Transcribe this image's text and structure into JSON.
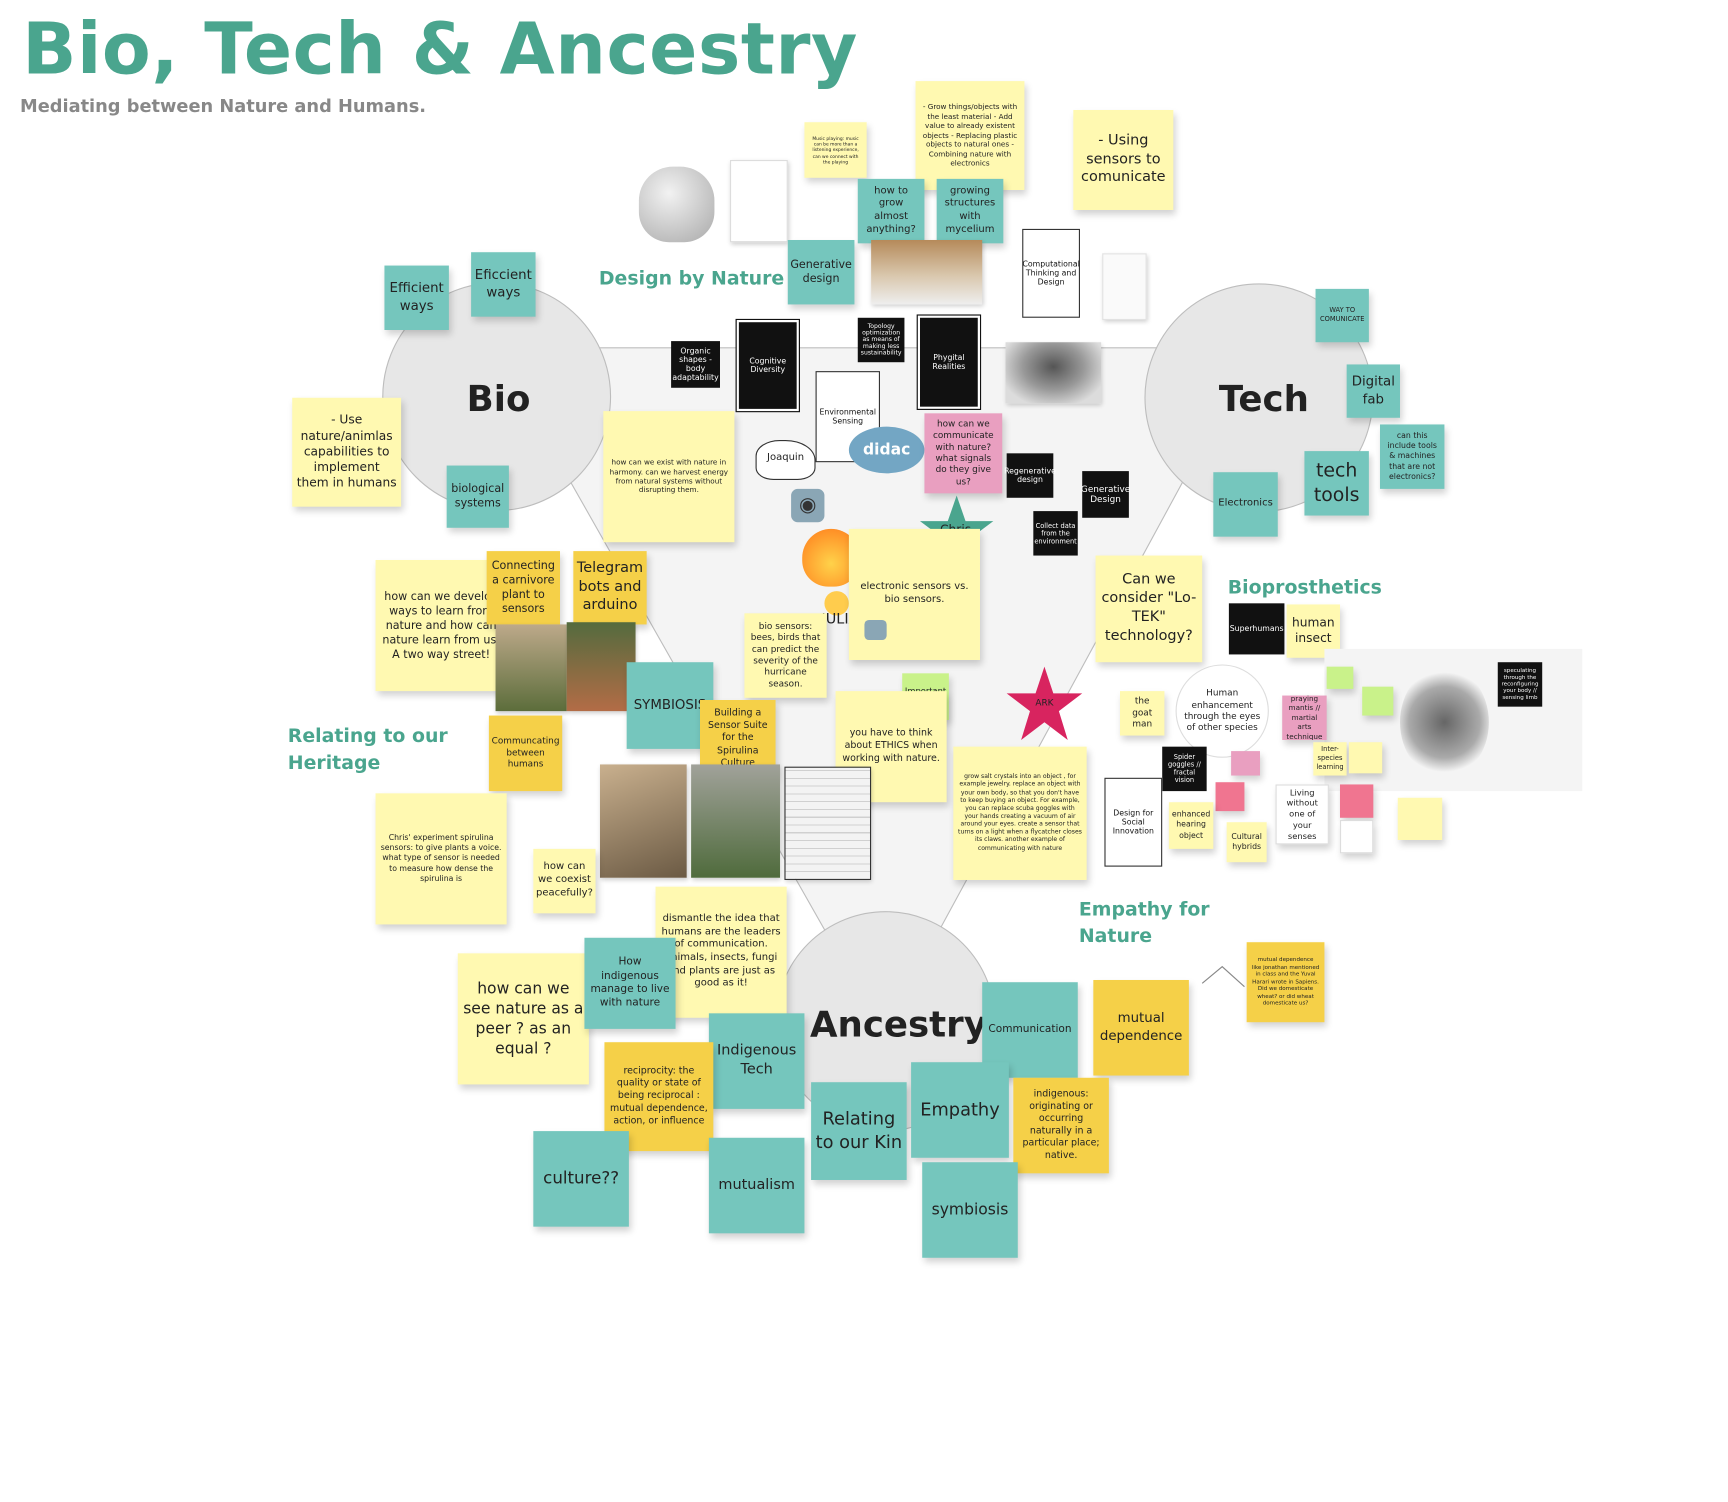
{
  "title": "Bio, Tech & Ancestry",
  "subtitle": "Mediating between Nature and Humans.",
  "headings": {
    "design_by_nature": "Design by Nature",
    "relating_heritage": "Relating to our Heritage",
    "bioprosthetics": "Bioprosthetics",
    "empathy_nature": "Empathy for Nature"
  },
  "circles": {
    "bio": "Bio",
    "tech": "Tech",
    "ancestry": "Ancestry"
  },
  "avatars": {
    "joaquin": "Joaquin",
    "didac": "didac",
    "chris": "Chris",
    "julia": "JULIA",
    "ark": "ARK"
  },
  "notes": {
    "efficient1": "Efficient ways",
    "eficient2": "Eficcient ways",
    "use_nature": "- Use nature/animlas capabilities to implement them in humans",
    "bio_systems": "biological systems",
    "design_notes": "- Grow things/objects with the least material - Add value to already existent objects - Replacing plastic objects to natural ones - Combining nature with electronics",
    "using_sensors": "- Using sensors to comunicate",
    "playing_music": "Music playing: music can be more than a listening experience, can we connect with the playing",
    "how_grow": "how to grow almost anything?",
    "growing_structures": "growing structures with mycelium",
    "generative_design": "Generative design",
    "organic_shapes": "Organic shapes - body adaptability",
    "cognitive_diversity": "Cognitive Diversity",
    "topology": "Topology optimization as means of making less sustainability",
    "phygital": "Phygital Realities",
    "env_sensing": "Environmental Sensing",
    "comp_thinking": "Computational Thinking and Design",
    "way_communicate": "WAY TO COMUNICATE",
    "digital_fab": "Digital fab",
    "tools_machines": "can this include tools & machines that are not electronics?",
    "tech_tools": "tech tools",
    "electronics": "Electronics",
    "exist_harmony": "how can we exist with nature in harmony. can we harvest energy from natural systems without disrupting them.",
    "communicate_nature": "how can we communicate with nature? what signals do they give us?",
    "regenerative": "Regenerative design",
    "generative_design2": "Generative Design",
    "collect_data": "Collect data from the environment",
    "develop_ways": "how can we develop ways to learn from nature and how can nature learn from us. A two way street!",
    "connecting_plant": "Connecting a carnivore plant to sensors",
    "telegram": "Telegram bots and arduino",
    "electronic_sensors": "electronic sensors vs. bio sensors.",
    "lotek": "Can we consider \"Lo-TEK\" technology?",
    "superhumans": "Superhumans",
    "human_insect": "human insect",
    "bio_sensors": "bio sensors: bees, birds that can predict the severity of the hurricane season.",
    "symbiosis_top": "SYMBIOSIS",
    "important": "Important question!",
    "ethics": "you have to think about ETHICS when working with nature.",
    "communicating_humans": "Communcating between humans",
    "building_sensor": "Building a Sensor Suite for the Spirulina Culture",
    "goat_man": "the goat man",
    "human_enhancement": "Human enhancement through the eyes of other species",
    "grow_crystals": "grow salt crystals into an object , for example jewelry. replace an object with your own body, so that you don't have to keep buying an object. For example, you can replace scuba goggles with your hands creating a vacuum of air around your eyes. create a sensor that turns on a light when a flycatcher closes its claws. another example of communicating with nature",
    "chris_experiment": "Chris' experiment spirulina sensors: to give plants a voice. what type of sensor is needed to measure how dense the spirulina is",
    "coexist": "how can we coexist peacefully?",
    "spider_goggles": "Spider goggles // fractal vision",
    "enhanced_hearing": "enhanced hearing object",
    "cultural_hybrids": "Cultural hybrids",
    "living_without": "Living without one of your senses",
    "design_social": "Design for Social Innovation",
    "praying_mantis": "praying mantis // martial arts technique",
    "inter_species": "Inter-species learning",
    "dismantle": "dismantle the idea that humans are the leaders of communication. animals, insects, fungi and plants are just as good as it!",
    "see_nature_peer": "how can we see nature as a peer ? as an equal ?",
    "how_indigenous": "How indigenous manage to live with nature",
    "reciprocity": "reciprocity: the quality or state of being reciprocal : mutual dependence, action, or influence",
    "indigenous_tech": "Indigenous Tech",
    "communication": "Communication",
    "mutual_dependence": "mutual dependence",
    "mutual_small": "mutual dependence",
    "mutual_text": "like jonathan mentioned in class and the Yuval Harari wrote in Sapiens. Did we domesticate wheat? or did wheat domesticate us?",
    "relating_kin": "Relating to our Kin",
    "empathy": "Empathy",
    "indigenous_def": "indigenous: originating or occurring naturally in a particular place; native.",
    "culture": "culture??",
    "mutualism": "mutualism",
    "symbiosis": "symbiosis",
    "speculating": "speculating through the reconfiguring your body // sensing limb"
  },
  "colors": {
    "teal_heading": "#4aa58e",
    "yellow": "#fff9b1",
    "orange": "#f5d048",
    "teal": "#75c6bd",
    "pink": "#e99fc0",
    "star_green": "#4aa58e",
    "star_pink": "#d8245f"
  }
}
